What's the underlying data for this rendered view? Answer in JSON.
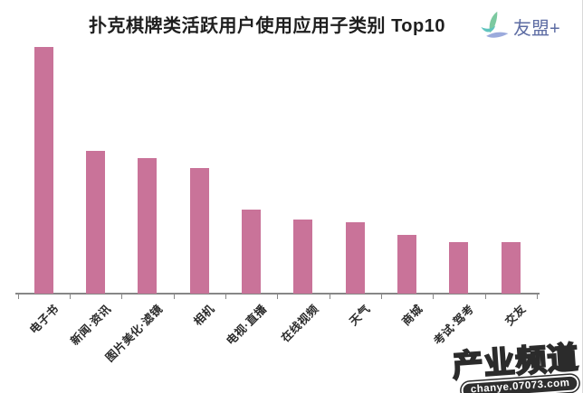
{
  "title": "扑克棋牌类活跃用户使用应用子类别 Top10",
  "brand": {
    "name": "友盟+",
    "icon": "umeng-leaf-icon",
    "text_color": "#5d6ca3",
    "icon_colors": {
      "green": "#7cc9a0",
      "teal": "#5fc4be",
      "blue": "#9baadc"
    }
  },
  "watermark": {
    "title": "产业频道",
    "url": "chanye.07073.com"
  },
  "chart_data": {
    "type": "bar",
    "title": "扑克棋牌类活跃用户使用应用子类别 Top10",
    "categories": [
      "电子书",
      "新闻·资讯",
      "图片美化·滤镜",
      "相机",
      "电视·直播",
      "在线视频",
      "天气",
      "商城",
      "考试·驾考",
      "交友"
    ],
    "values": [
      100,
      58,
      55,
      51,
      34,
      30,
      29,
      24,
      21,
      21
    ],
    "value_note": "value axis unlabeled in source; values are relative heights with tallest bar = 100",
    "xlabel": "",
    "ylabel": "",
    "ylim": [
      0,
      104.5
    ],
    "grid": false,
    "legend": null,
    "bar_color": "#c97399",
    "axis_color": "#878787",
    "label_color": "#2b2b2b",
    "label_rotation_deg": 45
  }
}
